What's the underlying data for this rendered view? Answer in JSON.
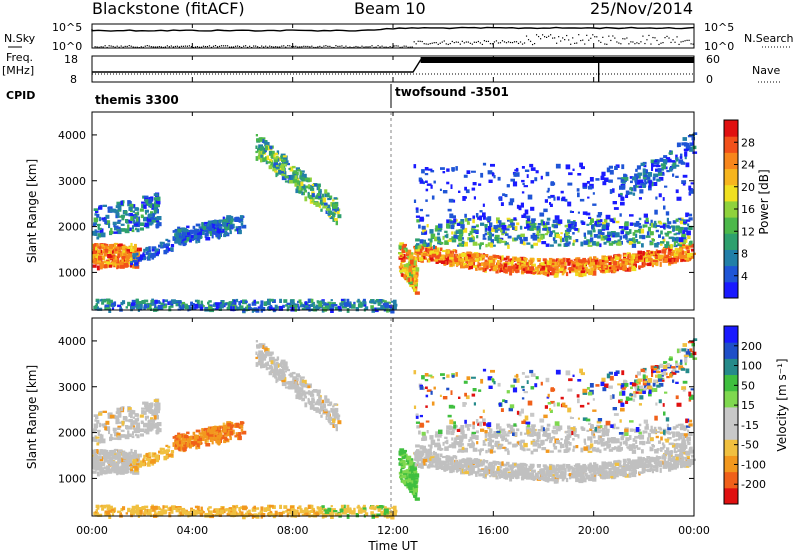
{
  "header": {
    "station": "Blackstone (fitACF)",
    "beam": "Beam 10",
    "date": "25/Nov/2014"
  },
  "colors": {
    "power_scale": [
      "#1a1aff",
      "#1f55d6",
      "#227fa8",
      "#2ea06e",
      "#4cb84a",
      "#8fd23c",
      "#f0e020",
      "#f6b51e",
      "#f7861c",
      "#f2501a",
      "#e01010"
    ],
    "velocity_scale": [
      "#1a1aff",
      "#1f4fc8",
      "#258a8a",
      "#3fbf3f",
      "#7fd84f",
      "#c8c8c8",
      "#c8c8c8",
      "#f0c040",
      "#f2981e",
      "#f0601a",
      "#e01010"
    ],
    "ground_scatter": "#c0c0c0"
  },
  "chart_data": [
    {
      "type": "line",
      "name": "top-panel",
      "labels": {
        "n_sky": "N.Sky",
        "n_search": "N.Search",
        "left_ticks": [
          "10^5",
          "10^0"
        ],
        "right_ticks": [
          "10^5",
          "10^0"
        ]
      }
    },
    {
      "type": "line",
      "name": "freq-panel",
      "labels": {
        "freq": "Freq.",
        "unit": "[MHz]",
        "nave": "Nave",
        "left_ticks": [
          "18",
          "8"
        ],
        "right_ticks": [
          "60",
          "0"
        ]
      }
    },
    {
      "type": "table",
      "name": "cpid",
      "label": "CPID",
      "segments": [
        {
          "text": "themis 3300",
          "start_hour": 0
        },
        {
          "text": "twofsound -3501",
          "start_hour": 12.0
        }
      ]
    },
    {
      "type": "heatmap",
      "name": "power",
      "ylabel": "Slant Range [km]",
      "ylim": [
        180,
        4500
      ],
      "xlim": [
        0,
        24
      ],
      "yticks": [
        "1000",
        "2000",
        "3000",
        "4000"
      ],
      "colorbar_label": "Power [dB]",
      "colorbar_ticks": [
        "4",
        "8",
        "12",
        "16",
        "20",
        "24",
        "28"
      ]
    },
    {
      "type": "heatmap",
      "name": "velocity",
      "ylabel": "Slant Range [km]",
      "xlabel": "Time UT",
      "ylim": [
        180,
        4500
      ],
      "xlim": [
        0,
        24
      ],
      "yticks": [
        "1000",
        "2000",
        "3000",
        "4000"
      ],
      "xticks": [
        "00:00",
        "04:00",
        "08:00",
        "12:00",
        "16:00",
        "20:00",
        "00:00"
      ],
      "colorbar_label": "Velocity [m s⁻¹]",
      "colorbar_ticks": [
        "200",
        "100",
        "50",
        "15",
        "-15",
        "-50",
        "-100",
        "-200"
      ]
    }
  ]
}
